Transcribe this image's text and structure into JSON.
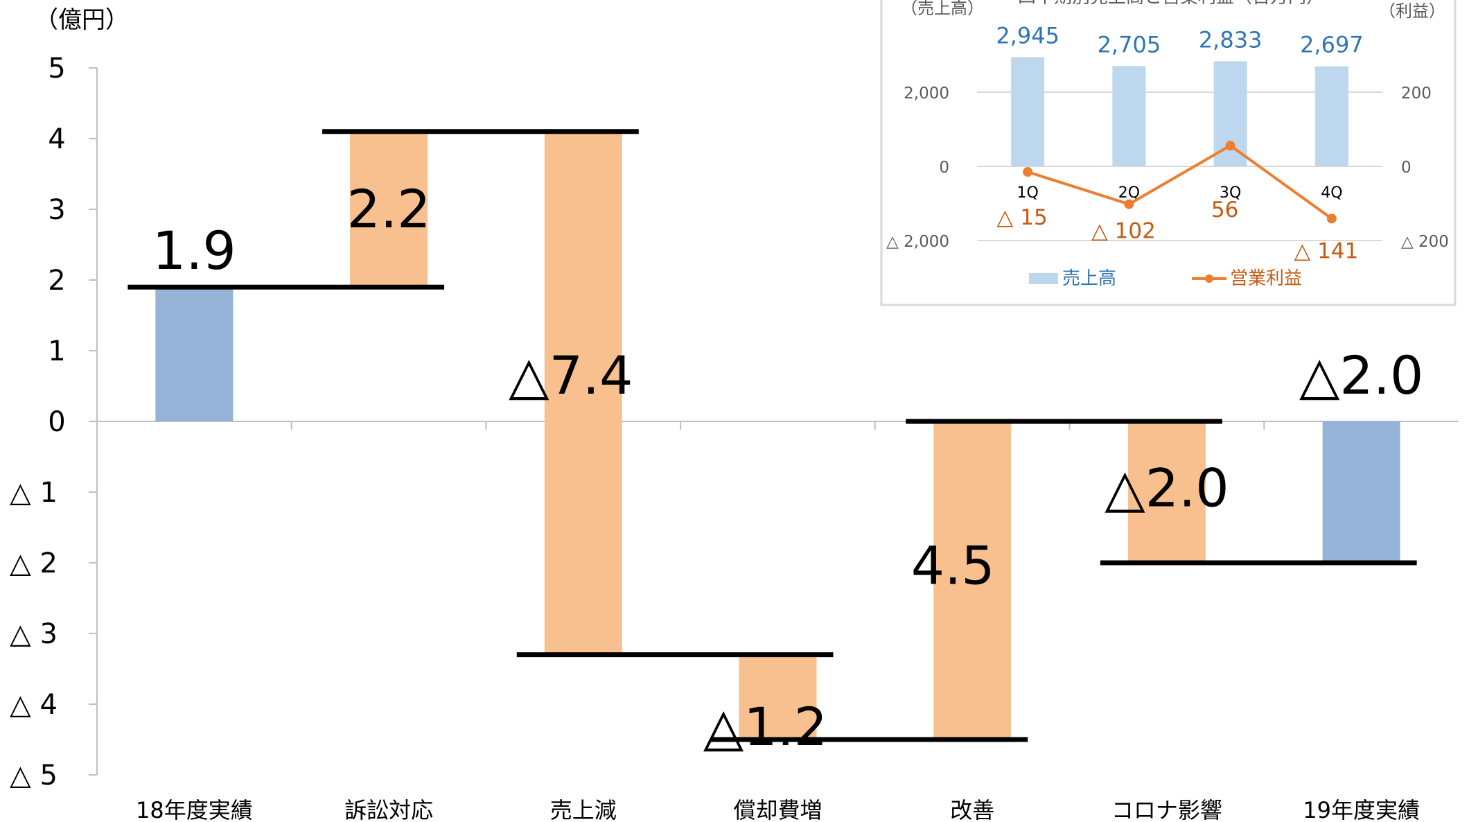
{
  "chart_data": [
    {
      "type": "bar",
      "subtype": "waterfall",
      "unit": "（億円）",
      "ylim": [
        -5,
        5
      ],
      "ytick_values": [
        5,
        4,
        3,
        2,
        1,
        0,
        -1,
        -2,
        -3,
        -4,
        -5
      ],
      "ytick_labels": [
        "5",
        "4",
        "3",
        "2",
        "1",
        "0",
        "△ 1",
        "△ 2",
        "△ 3",
        "△ 4",
        "△ 5"
      ],
      "categories": [
        "18年度実績",
        "訴訟対応",
        "売上減",
        "償却費増",
        "改善",
        "コロナ影響",
        "19年度実績"
      ],
      "bars": [
        {
          "start": 0,
          "end": 1.9,
          "kind": "total",
          "label": "1.9"
        },
        {
          "start": 1.9,
          "end": 4.1,
          "kind": "change",
          "label": "2.2"
        },
        {
          "start": 4.1,
          "end": -3.3,
          "kind": "change",
          "label": "△7.4"
        },
        {
          "start": -3.3,
          "end": -4.5,
          "kind": "change",
          "label": "△1.2"
        },
        {
          "start": -4.5,
          "end": 0.0,
          "kind": "change",
          "label": "4.5"
        },
        {
          "start": 0.0,
          "end": -2.0,
          "kind": "change",
          "label": "△2.0"
        },
        {
          "start": 0,
          "end": -2.0,
          "kind": "total",
          "label": "△2.0"
        }
      ],
      "colors": {
        "total": "#95b3d7",
        "change": "#f9c08f",
        "connector": "#000000",
        "axis": "#bfbfbf",
        "text": "#000000"
      },
      "grid": false,
      "legend": "none"
    },
    {
      "type": "bar",
      "subtype": "bar-line-combo",
      "title": "四半期別売上高と営業利益（百万円）",
      "y1_label": "（売上高）",
      "y2_label": "（利益）",
      "categories": [
        "1Q",
        "2Q",
        "3Q",
        "4Q"
      ],
      "y1_ticks": [
        "2,000",
        "0",
        "△ 2,000"
      ],
      "y2_ticks": [
        "200",
        "0",
        "△ 200"
      ],
      "y1lim": [
        -2000,
        3000
      ],
      "y2lim": [
        -200,
        300
      ],
      "series": [
        {
          "name": "売上高",
          "type": "bar",
          "axis": "left",
          "values": [
            2945,
            2705,
            2833,
            2697
          ],
          "labels": [
            "2,945",
            "2,705",
            "2,833",
            "2,697"
          ],
          "color": "#bdd7ee",
          "label_color": "#2e75b6"
        },
        {
          "name": "営業利益",
          "type": "line",
          "axis": "right",
          "values": [
            -15,
            -102,
            56,
            -141
          ],
          "labels": [
            "△ 15",
            "△ 102",
            "56",
            "△ 141"
          ],
          "color": "#ed7d31",
          "label_color": "#c55a11"
        }
      ],
      "legend": "bottom",
      "grid": true
    }
  ]
}
